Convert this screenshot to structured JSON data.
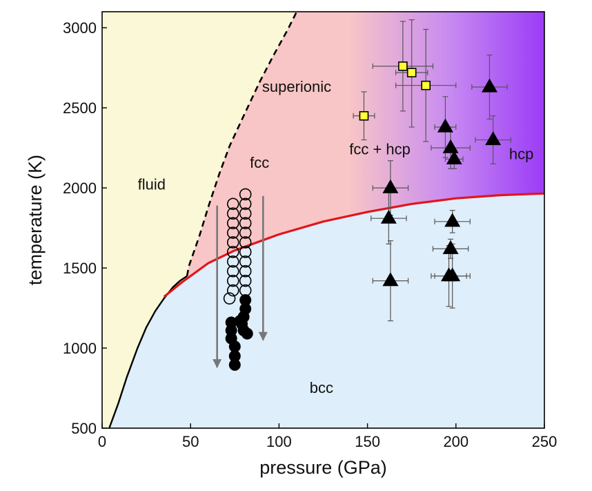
{
  "chart_data": {
    "type": "scatter",
    "title": "",
    "xlabel": "pressure (GPa)",
    "ylabel": "temperature (K)",
    "xlim": [
      0,
      250
    ],
    "ylim": [
      500,
      3100
    ],
    "x_ticks": [
      0,
      50,
      100,
      150,
      200,
      250
    ],
    "y_ticks": [
      500,
      1000,
      1500,
      2000,
      2500,
      3000
    ],
    "x_tick_labels": [
      "0",
      "50",
      "100",
      "150",
      "200",
      "250"
    ],
    "y_tick_labels": [
      "500",
      "1000",
      "1500",
      "2000",
      "2500",
      "3000"
    ],
    "grid": false,
    "legend": "none",
    "region_labels": {
      "fluid": {
        "text": "fluid",
        "x": 28,
        "y": 1990
      },
      "fcc": {
        "text": "fcc",
        "x": 89,
        "y": 2125
      },
      "superionic": {
        "text": "superionic",
        "x": 110,
        "y": 2600
      },
      "fcc_hcp": {
        "text": "fcc + hcp",
        "x": 157,
        "y": 2210
      },
      "hcp": {
        "text": "hcp",
        "x": 237,
        "y": 2180
      },
      "bcc": {
        "text": "bcc",
        "x": 124,
        "y": 720
      }
    },
    "colors": {
      "fluid": "#fbf8d8",
      "superionic": "#f8c6c6",
      "hcp_region": "#9b3cf6",
      "bcc": "#deeefa",
      "boundary_bcc": "#e0151c",
      "melting_line": "#000000",
      "arrow": "#777777",
      "square_fill": "#ffff33",
      "error_bar": "#555555"
    },
    "boundaries": {
      "melting_curve": [
        [
          4,
          500
        ],
        [
          9,
          650
        ],
        [
          14,
          820
        ],
        [
          15,
          850
        ],
        [
          20,
          1000
        ],
        [
          25,
          1130
        ],
        [
          30,
          1230
        ],
        [
          35,
          1310
        ],
        [
          40,
          1380
        ],
        [
          44,
          1420
        ],
        [
          48,
          1450
        ]
      ],
      "superionic_fluid": [
        [
          48,
          1450
        ],
        [
          49,
          1510
        ],
        [
          55,
          1700
        ],
        [
          60,
          1880
        ],
        [
          66,
          2080
        ],
        [
          72,
          2260
        ],
        [
          80,
          2450
        ],
        [
          89,
          2660
        ],
        [
          97,
          2830
        ],
        [
          105,
          2990
        ],
        [
          110,
          3100
        ]
      ],
      "bcc_upper": [
        [
          35,
          1320
        ],
        [
          45,
          1410
        ],
        [
          60,
          1530
        ],
        [
          75,
          1610
        ],
        [
          100,
          1710
        ],
        [
          125,
          1790
        ],
        [
          150,
          1850
        ],
        [
          175,
          1900
        ],
        [
          200,
          1935
        ],
        [
          225,
          1955
        ],
        [
          250,
          1965
        ]
      ]
    },
    "series": [
      {
        "marker": "triangle",
        "points": [
          {
            "x": 219,
            "y": 2630,
            "xerr": 10,
            "yerr_up": 200,
            "yerr_down": 200
          },
          {
            "x": 194,
            "y": 2380,
            "xerr": 6,
            "yerr_up": 190,
            "yerr_down": 190
          },
          {
            "x": 221,
            "y": 2300,
            "xerr": 10,
            "yerr_up": 150,
            "yerr_down": 150
          },
          {
            "x": 197,
            "y": 2250,
            "xerr": 11,
            "yerr_up": 130,
            "yerr_down": 130
          },
          {
            "x": 199,
            "y": 2180,
            "xerr": 5,
            "yerr_up": 60,
            "yerr_down": 60
          },
          {
            "x": 163,
            "y": 2000,
            "xerr": 10,
            "yerr_up": 170,
            "yerr_down": 170
          },
          {
            "x": 162,
            "y": 1810,
            "xerr": 10,
            "yerr_up": 160,
            "yerr_down": 160
          },
          {
            "x": 198,
            "y": 1790,
            "xerr": 10,
            "yerr_up": 70,
            "yerr_down": 70
          },
          {
            "x": 197,
            "y": 1620,
            "xerr": 10,
            "yerr_up": 60,
            "yerr_down": 60
          },
          {
            "x": 196,
            "y": 1450,
            "xerr": 10,
            "yerr_up": 190,
            "yerr_down": 190
          },
          {
            "x": 198,
            "y": 1450,
            "xerr": 10,
            "yerr_up": 200,
            "yerr_down": 200
          },
          {
            "x": 163,
            "y": 1420,
            "xerr": 10,
            "yerr_up": 250,
            "yerr_down": 250
          }
        ]
      },
      {
        "marker": "square",
        "points": [
          {
            "x": 170,
            "y": 2760,
            "xerr": 17,
            "yerr_up": 280,
            "yerr_down": 280
          },
          {
            "x": 175,
            "y": 2720,
            "xerr": 9,
            "yerr_up": 330,
            "yerr_down": 340
          },
          {
            "x": 183,
            "y": 2640,
            "xerr": 17,
            "yerr_up": 350,
            "yerr_down": 350
          },
          {
            "x": 148,
            "y": 2450,
            "xerr": 6,
            "yerr_up": 150,
            "yerr_down": 150
          }
        ]
      },
      {
        "marker": "open-circle",
        "points": [
          {
            "x": 81,
            "y": 1960
          },
          {
            "x": 81,
            "y": 1900
          },
          {
            "x": 81,
            "y": 1840
          },
          {
            "x": 81,
            "y": 1780
          },
          {
            "x": 81,
            "y": 1720
          },
          {
            "x": 81,
            "y": 1660
          },
          {
            "x": 81,
            "y": 1600
          },
          {
            "x": 81,
            "y": 1540
          },
          {
            "x": 81,
            "y": 1480
          },
          {
            "x": 81,
            "y": 1420
          },
          {
            "x": 81,
            "y": 1360
          },
          {
            "x": 74,
            "y": 1900
          },
          {
            "x": 74,
            "y": 1840
          },
          {
            "x": 74,
            "y": 1780
          },
          {
            "x": 74,
            "y": 1720
          },
          {
            "x": 74,
            "y": 1660
          },
          {
            "x": 74,
            "y": 1600
          },
          {
            "x": 74,
            "y": 1540
          },
          {
            "x": 74,
            "y": 1480
          },
          {
            "x": 74,
            "y": 1420
          },
          {
            "x": 74,
            "y": 1360
          },
          {
            "x": 72,
            "y": 1310
          }
        ]
      },
      {
        "marker": "filled-circle",
        "points": [
          {
            "x": 81,
            "y": 1300
          },
          {
            "x": 81,
            "y": 1245
          },
          {
            "x": 80,
            "y": 1195
          },
          {
            "x": 79,
            "y": 1150
          },
          {
            "x": 80,
            "y": 1110
          },
          {
            "x": 82,
            "y": 1090
          },
          {
            "x": 78,
            "y": 1170
          },
          {
            "x": 73,
            "y": 1160
          },
          {
            "x": 73,
            "y": 1110
          },
          {
            "x": 73,
            "y": 1060
          },
          {
            "x": 75,
            "y": 1010
          },
          {
            "x": 75,
            "y": 950
          },
          {
            "x": 75,
            "y": 895
          }
        ]
      }
    ],
    "arrows": [
      {
        "x": 65,
        "y_from": 1890,
        "y_to": 880
      },
      {
        "x": 91,
        "y_from": 1950,
        "y_to": 1050
      }
    ]
  }
}
